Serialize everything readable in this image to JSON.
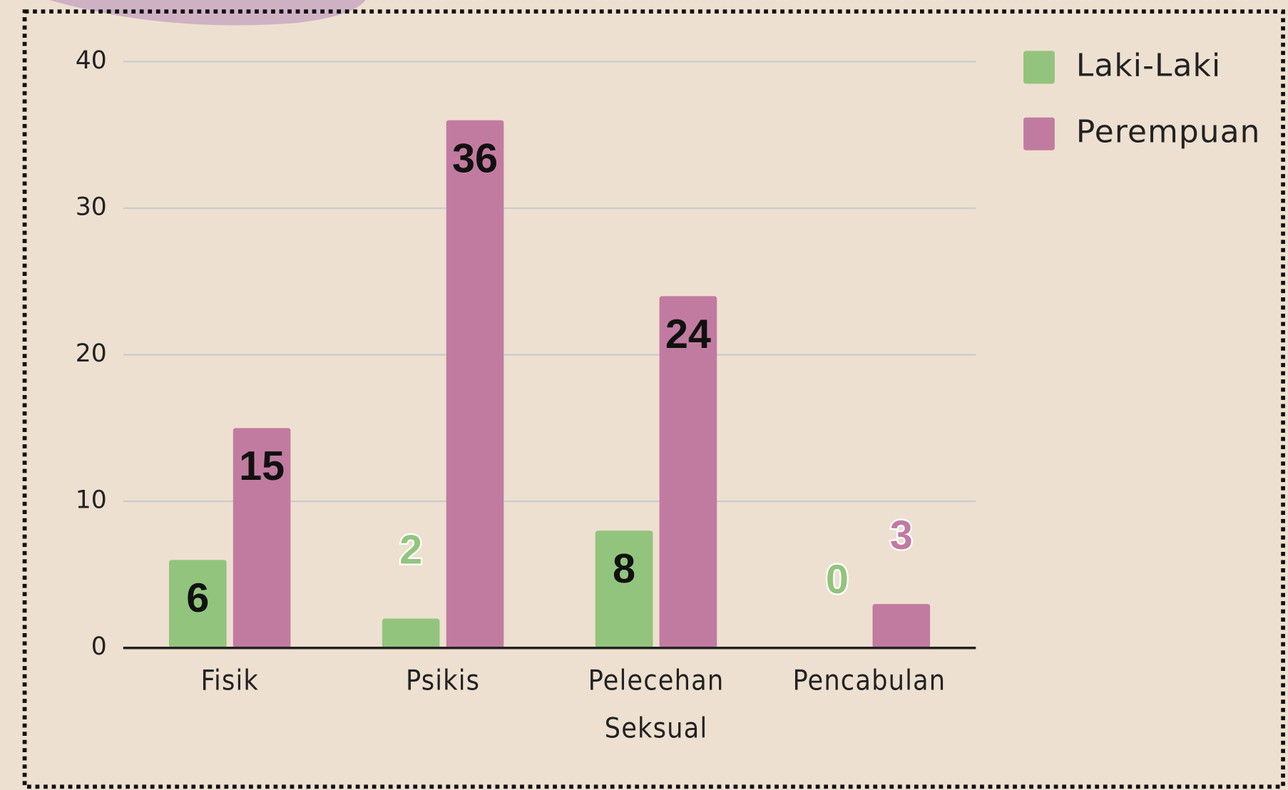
{
  "chart_data": {
    "type": "bar",
    "categories": [
      "Fisik",
      "Psikis",
      "Pelecehan Seksual",
      "Pencabulan"
    ],
    "series": [
      {
        "name": "Laki-Laki",
        "color": "#93c47d",
        "values": [
          6,
          2,
          8,
          0
        ]
      },
      {
        "name": "Perempuan",
        "color": "#c27ba0",
        "values": [
          15,
          36,
          24,
          3
        ]
      }
    ],
    "ylim": [
      0,
      40
    ],
    "yticks": [
      0,
      10,
      20,
      30,
      40
    ],
    "grid": true,
    "legend": "top-right"
  }
}
